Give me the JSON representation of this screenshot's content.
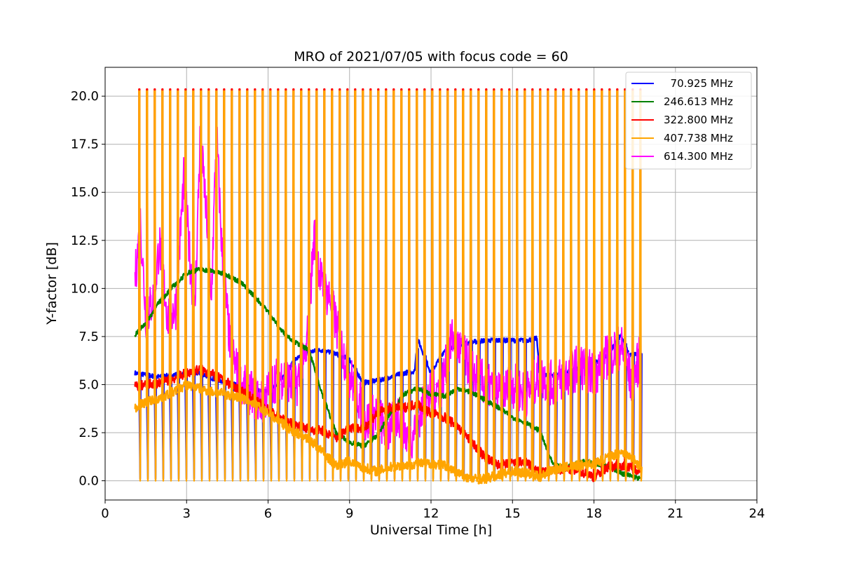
{
  "chart_data": {
    "type": "line",
    "title": "MRO of 2021/07/05 with focus code = 60",
    "xlabel": "Universal Time [h]",
    "ylabel": "Y-factor [dB]",
    "xlim": [
      0,
      24
    ],
    "ylim": [
      -1.0,
      21.5
    ],
    "xticks": [
      0,
      3,
      6,
      9,
      12,
      15,
      18,
      21,
      24
    ],
    "yticks": [
      0.0,
      2.5,
      5.0,
      7.5,
      10.0,
      12.5,
      15.0,
      17.5,
      20.0
    ],
    "xtick_labels": [
      "0",
      "3",
      "6",
      "9",
      "12",
      "15",
      "18",
      "21",
      "24"
    ],
    "ytick_labels": [
      "0.0",
      "2.5",
      "5.0",
      "7.5",
      "10.0",
      "12.5",
      "15.0",
      "17.5",
      "20.0"
    ],
    "grid": true,
    "legend_position": "top-right",
    "series": [
      {
        "name": "  70.925 MHz",
        "color": "#0000ff",
        "x": [
          1.1,
          1.5,
          2.0,
          2.5,
          3.0,
          3.5,
          4.0,
          4.5,
          5.0,
          5.5,
          6.0,
          6.5,
          7.0,
          7.5,
          8.0,
          8.5,
          9.0,
          9.5,
          10.0,
          10.5,
          11.0,
          11.4,
          11.5,
          12.0,
          12.5,
          13.0,
          13.5,
          14.0,
          14.5,
          15.0,
          15.5,
          15.9,
          16.0,
          16.5,
          17.0,
          17.5,
          18.0,
          18.5,
          19.0,
          19.3,
          19.7
        ],
        "y": [
          5.6,
          5.5,
          5.4,
          5.5,
          5.6,
          5.6,
          5.3,
          5.1,
          4.9,
          4.8,
          4.6,
          5.3,
          6.3,
          6.7,
          6.8,
          6.6,
          6.3,
          5.1,
          5.2,
          5.4,
          5.6,
          5.7,
          7.4,
          5.6,
          6.8,
          7.1,
          7.2,
          7.3,
          7.3,
          7.3,
          7.3,
          7.4,
          5.5,
          5.5,
          5.6,
          5.9,
          6.1,
          6.5,
          7.6,
          6.5,
          6.6
        ]
      },
      {
        "name": "246.613 MHz",
        "color": "#008000",
        "x": [
          1.1,
          1.5,
          2.0,
          2.5,
          3.0,
          3.5,
          4.0,
          4.5,
          5.0,
          5.5,
          6.0,
          6.5,
          7.0,
          7.5,
          8.0,
          8.5,
          9.0,
          9.5,
          10.0,
          10.5,
          11.0,
          11.5,
          12.0,
          12.5,
          13.0,
          13.5,
          14.0,
          14.5,
          15.0,
          15.5,
          16.0,
          16.5,
          17.0,
          17.5,
          18.0,
          18.5,
          19.0,
          19.5,
          19.7
        ],
        "y": [
          7.6,
          8.2,
          9.3,
          10.1,
          10.8,
          11.0,
          10.9,
          10.7,
          10.3,
          9.6,
          8.8,
          7.8,
          7.2,
          6.8,
          4.5,
          2.5,
          2.0,
          1.8,
          2.3,
          3.5,
          4.5,
          4.8,
          4.5,
          4.4,
          4.8,
          4.6,
          4.2,
          3.8,
          3.3,
          3.0,
          2.6,
          0.8,
          0.7,
          1.0,
          0.9,
          0.8,
          0.4,
          0.2,
          0.1
        ]
      },
      {
        "name": "322.800 MHz",
        "color": "#ff0000",
        "x": [
          1.1,
          1.5,
          2.0,
          2.5,
          3.0,
          3.5,
          4.0,
          4.5,
          5.0,
          5.5,
          6.0,
          6.5,
          7.0,
          7.5,
          8.0,
          8.5,
          9.0,
          9.5,
          10.0,
          10.5,
          11.0,
          11.5,
          12.0,
          12.5,
          13.0,
          13.5,
          14.0,
          14.5,
          15.0,
          15.5,
          16.0,
          16.5,
          17.0,
          17.5,
          18.0,
          18.5,
          19.0,
          19.5,
          19.7
        ],
        "y": [
          4.9,
          5.0,
          5.1,
          5.3,
          5.6,
          5.8,
          5.5,
          5.1,
          4.7,
          4.2,
          3.7,
          3.2,
          2.9,
          2.7,
          2.6,
          2.2,
          2.8,
          2.7,
          3.5,
          3.8,
          3.8,
          4.0,
          3.5,
          3.3,
          2.8,
          2.0,
          1.2,
          0.8,
          0.9,
          1.0,
          0.4,
          0.5,
          0.6,
          0.5,
          0.2,
          0.7,
          0.8,
          0.6,
          0.6
        ]
      },
      {
        "name": "407.738 MHz",
        "color": "#ffa500",
        "x": [
          1.1,
          1.5,
          2.0,
          2.5,
          3.0,
          3.5,
          4.0,
          4.5,
          5.0,
          5.5,
          6.0,
          6.5,
          7.0,
          7.5,
          8.0,
          8.5,
          9.0,
          9.5,
          10.0,
          10.5,
          11.0,
          11.5,
          12.0,
          12.5,
          13.0,
          13.5,
          14.0,
          14.5,
          15.0,
          15.5,
          16.0,
          16.5,
          17.0,
          17.5,
          18.0,
          18.5,
          19.0,
          19.5,
          19.7
        ],
        "y": [
          3.8,
          4.1,
          4.3,
          4.6,
          5.0,
          4.8,
          4.6,
          4.5,
          4.3,
          4.0,
          3.5,
          3.0,
          2.5,
          2.2,
          1.5,
          0.8,
          1.0,
          0.7,
          0.5,
          0.7,
          0.8,
          0.9,
          0.9,
          0.8,
          0.4,
          0.1,
          0.1,
          0.3,
          0.5,
          0.4,
          0.2,
          0.6,
          0.7,
          0.8,
          0.9,
          1.2,
          1.5,
          1.1,
          0.7
        ]
      },
      {
        "name": "614.300 MHz",
        "color": "#ff00ff",
        "x": [
          1.1,
          1.3,
          1.5,
          1.8,
          2.0,
          2.3,
          2.6,
          2.9,
          3.1,
          3.3,
          3.5,
          3.7,
          3.9,
          4.1,
          4.3,
          4.6,
          5.0,
          5.4,
          5.8,
          6.2,
          6.6,
          7.0,
          7.4,
          7.7,
          8.0,
          8.3,
          8.6,
          9.0,
          9.3,
          9.6,
          10.0,
          10.4,
          10.8,
          11.2,
          11.6,
          12.0,
          12.4,
          12.8,
          13.2,
          13.6,
          14.0,
          14.5,
          15.0,
          15.5,
          16.0,
          16.5,
          17.0,
          17.5,
          18.0,
          18.5,
          19.0,
          19.4,
          19.7
        ],
        "y": [
          10.5,
          13.4,
          8.5,
          9.5,
          12.4,
          8.5,
          9.0,
          15.8,
          12.0,
          8.5,
          18.0,
          14.5,
          9.0,
          18.3,
          12.0,
          7.0,
          5.0,
          4.5,
          4.0,
          5.2,
          5.5,
          4.8,
          6.5,
          12.8,
          10.0,
          9.5,
          7.5,
          5.5,
          4.5,
          3.0,
          3.5,
          2.5,
          3.5,
          2.0,
          3.5,
          4.5,
          5.0,
          7.5,
          6.5,
          5.5,
          5.0,
          4.5,
          5.0,
          4.5,
          5.5,
          5.0,
          5.5,
          6.0,
          5.5,
          6.5,
          7.0,
          5.0,
          6.5
        ]
      }
    ],
    "calibration_spikes": {
      "description_hidden": true,
      "x_start": 1.25,
      "x_end": 19.7,
      "count": 66,
      "orange_peak": 20.3,
      "red_peak": 20.35,
      "magenta_peak": 10.8,
      "blue_low": 0.1,
      "orange_low": 0.0
    }
  }
}
